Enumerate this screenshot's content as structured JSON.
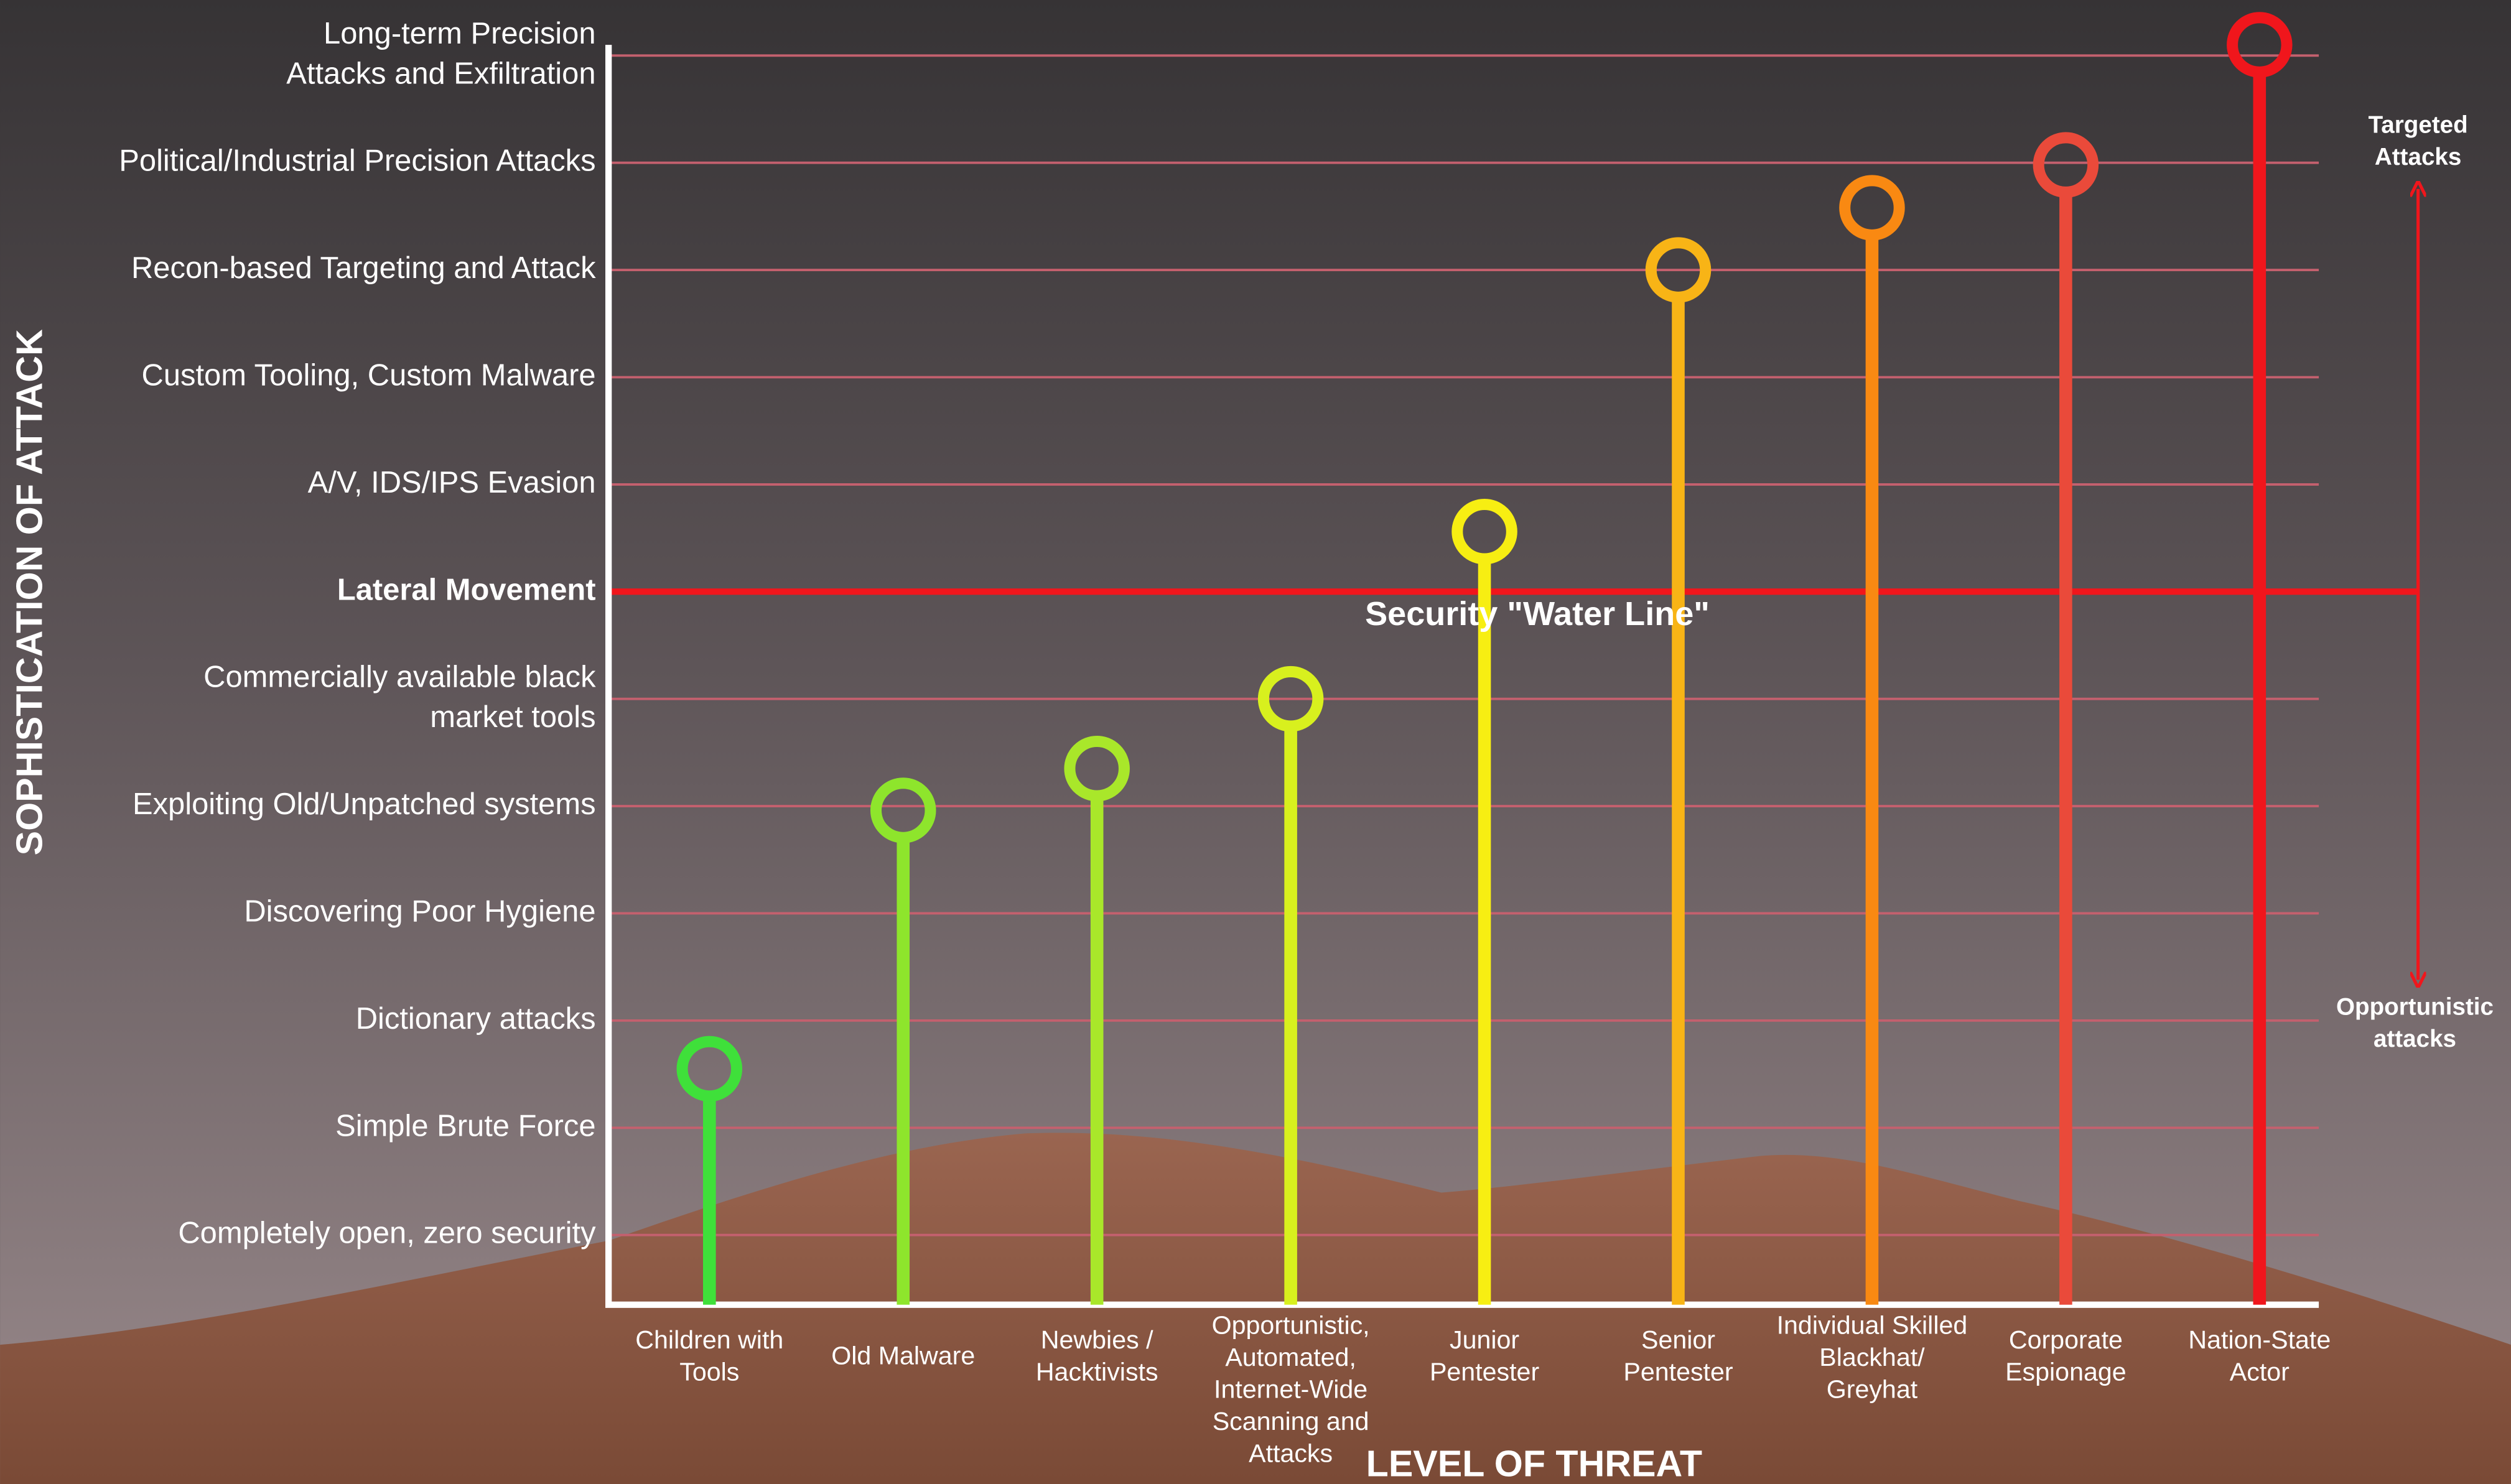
{
  "chart_data": {
    "type": "lollipop",
    "x_label": "LEVEL OF THREAT",
    "y_label": "SOPHISTICATION OF ATTACK",
    "categories": [
      "Children with\nTools",
      "Old Malware",
      "Newbies /\nHacktivists",
      "Opportunistic,\nAutomated,\nInternet-Wide\nScanning and\nAttacks",
      "Junior\nPentester",
      "Senior\nPentester",
      "Individual Skilled\nBlackhat/\nGreyhat",
      "Corporate\nEspionage",
      "Nation-State\nActor"
    ],
    "values": [
      1.55,
      3.96,
      4.35,
      5.0,
      6.56,
      9.0,
      9.58,
      9.98,
      11.1
    ],
    "colors": [
      "#3fe03a",
      "#8ee52c",
      "#a9e72a",
      "#d8f01e",
      "#f7ee12",
      "#f8b416",
      "#f98912",
      "#ea4a3a",
      "#f0161c"
    ],
    "ylim": [
      -0.65,
      11.1
    ],
    "yticks": [
      {
        "value": 0,
        "label": "Completely open, zero security"
      },
      {
        "value": 1,
        "label": "Simple Brute Force"
      },
      {
        "value": 2,
        "label": "Dictionary attacks"
      },
      {
        "value": 3,
        "label": "Discovering Poor Hygiene"
      },
      {
        "value": 4,
        "label": "Exploiting Old/Unpatched systems"
      },
      {
        "value": 5,
        "label": "Commercially available black\nmarket tools"
      },
      {
        "value": 6,
        "label": "Lateral Movement"
      },
      {
        "value": 7,
        "label": "A/V, IDS/IPS Evasion"
      },
      {
        "value": 8,
        "label": "Custom Tooling, Custom Malware"
      },
      {
        "value": 9,
        "label": "Recon-based Targeting and Attack"
      },
      {
        "value": 10,
        "label": "Political/Industrial Precision Attacks"
      },
      {
        "value": 11,
        "label": "Long-term Precision\nAttacks and Exfiltration"
      }
    ],
    "grid": true,
    "water_line": {
      "value": 6,
      "label": "Security \"Water Line\"",
      "color": "#f0161c"
    },
    "range_top": "Targeted\nAttacks",
    "range_bottom": "Opportunistic\nattacks"
  }
}
